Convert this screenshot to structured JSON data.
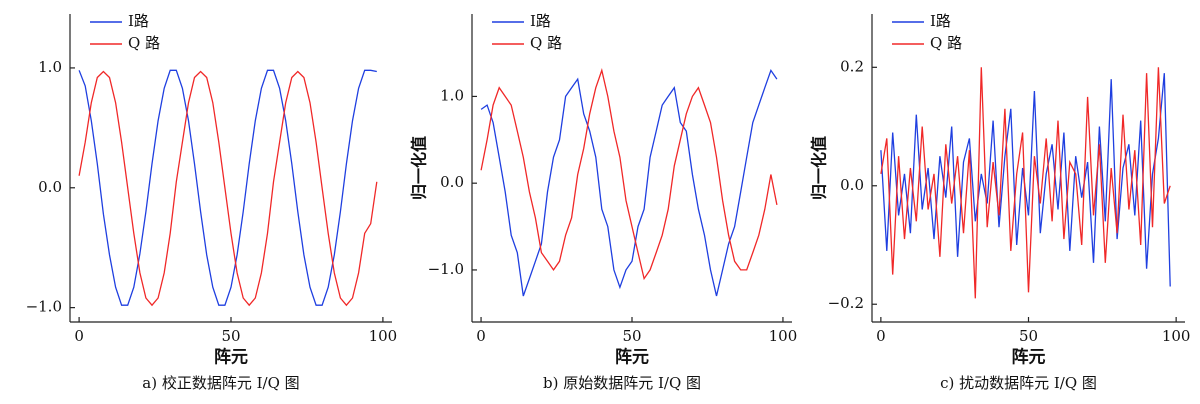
{
  "chart_data": [
    {
      "type": "line",
      "caption": "a)  校正数据阵元 I/Q 图",
      "xlabel": "阵元",
      "x": [
        0,
        2,
        4,
        6,
        8,
        10,
        12,
        14,
        16,
        18,
        20,
        22,
        24,
        26,
        28,
        30,
        32,
        34,
        36,
        38,
        40,
        42,
        44,
        46,
        48,
        50,
        52,
        54,
        56,
        58,
        60,
        62,
        64,
        66,
        68,
        70,
        72,
        74,
        76,
        78,
        80,
        82,
        84,
        86,
        88,
        90,
        92,
        94,
        96,
        98
      ],
      "series": [
        {
          "name": "I路",
          "color": "#1f3fe0",
          "values": [
            0.98,
            0.85,
            0.56,
            0.2,
            -0.22,
            -0.56,
            -0.83,
            -0.98,
            -0.98,
            -0.83,
            -0.55,
            -0.2,
            0.2,
            0.56,
            0.83,
            0.98,
            0.98,
            0.83,
            0.56,
            0.2,
            -0.2,
            -0.56,
            -0.83,
            -0.98,
            -0.98,
            -0.83,
            -0.56,
            -0.2,
            0.2,
            0.56,
            0.83,
            0.98,
            0.98,
            0.83,
            0.56,
            0.2,
            -0.2,
            -0.56,
            -0.83,
            -0.98,
            -0.98,
            -0.83,
            -0.56,
            -0.2,
            0.2,
            0.56,
            0.83,
            0.98,
            0.98,
            0.97
          ]
        },
        {
          "name": "Q 路",
          "color": "#f02828",
          "values": [
            0.1,
            0.38,
            0.71,
            0.92,
            0.97,
            0.92,
            0.71,
            0.38,
            0,
            -0.38,
            -0.71,
            -0.92,
            -0.98,
            -0.92,
            -0.71,
            -0.38,
            0.05,
            0.38,
            0.71,
            0.92,
            0.97,
            0.92,
            0.71,
            0.38,
            0,
            -0.38,
            -0.71,
            -0.92,
            -0.98,
            -0.92,
            -0.71,
            -0.38,
            0.05,
            0.38,
            0.71,
            0.92,
            0.97,
            0.92,
            0.71,
            0.38,
            0,
            -0.38,
            -0.71,
            -0.92,
            -0.98,
            -0.92,
            -0.71,
            -0.38,
            -0.3,
            0.05
          ]
        }
      ],
      "xlim": [
        -3,
        103
      ],
      "xticks": [
        0,
        50,
        100
      ],
      "ylim": [
        -1.12,
        1.45
      ],
      "yticks": [
        {
          "value": -1,
          "label": "−1.0"
        },
        {
          "value": 0,
          "label": "0.0"
        },
        {
          "value": 1,
          "label": "1.0"
        }
      ],
      "legend": "upper-left"
    },
    {
      "type": "line",
      "caption": "b)  原始数据阵元 I/Q 图",
      "xlabel": "阵元",
      "ylabel": "归一化值",
      "x": [
        0,
        2,
        4,
        6,
        8,
        10,
        12,
        14,
        16,
        18,
        20,
        22,
        24,
        26,
        28,
        30,
        32,
        34,
        36,
        38,
        40,
        42,
        44,
        46,
        48,
        50,
        52,
        54,
        56,
        58,
        60,
        62,
        64,
        66,
        68,
        70,
        72,
        74,
        76,
        78,
        80,
        82,
        84,
        86,
        88,
        90,
        92,
        94,
        96,
        98
      ],
      "series": [
        {
          "name": "I路",
          "color": "#1f3fe0",
          "values": [
            0.85,
            0.9,
            0.7,
            0.3,
            -0.1,
            -0.6,
            -0.8,
            -1.3,
            -1.1,
            -0.9,
            -0.7,
            -0.1,
            0.3,
            0.5,
            1.0,
            1.1,
            1.2,
            0.8,
            0.6,
            0.3,
            -0.3,
            -0.5,
            -1.0,
            -1.2,
            -1.0,
            -0.9,
            -0.5,
            -0.3,
            0.3,
            0.6,
            0.9,
            1.0,
            1.1,
            0.7,
            0.6,
            0.1,
            -0.3,
            -0.6,
            -1.0,
            -1.3,
            -1.0,
            -0.7,
            -0.5,
            -0.1,
            0.3,
            0.7,
            0.9,
            1.1,
            1.3,
            1.2
          ]
        },
        {
          "name": "Q 路",
          "color": "#f02828",
          "values": [
            0.15,
            0.5,
            0.9,
            1.1,
            1.0,
            0.9,
            0.6,
            0.3,
            -0.1,
            -0.4,
            -0.8,
            -0.9,
            -1.0,
            -0.9,
            -0.6,
            -0.4,
            0.1,
            0.4,
            0.8,
            1.1,
            1.3,
            1.0,
            0.6,
            0.3,
            -0.2,
            -0.5,
            -0.8,
            -1.1,
            -1.0,
            -0.8,
            -0.6,
            -0.3,
            0.2,
            0.5,
            0.8,
            1.0,
            1.1,
            0.9,
            0.7,
            0.3,
            -0.2,
            -0.6,
            -0.9,
            -1.0,
            -1.0,
            -0.8,
            -0.6,
            -0.3,
            0.1,
            -0.25
          ]
        }
      ],
      "xlim": [
        -3,
        103
      ],
      "xticks": [
        0,
        50,
        100
      ],
      "ylim": [
        -1.6,
        1.95
      ],
      "yticks": [
        {
          "value": -1,
          "label": "−1.0"
        },
        {
          "value": 0,
          "label": "0.0"
        },
        {
          "value": 1,
          "label": "1.0"
        }
      ],
      "legend": "upper-left"
    },
    {
      "type": "line",
      "caption": "c)  扰动数据阵元 I/Q 图",
      "xlabel": "阵元",
      "ylabel": "归一化值",
      "x": [
        0,
        2,
        4,
        6,
        8,
        10,
        12,
        14,
        16,
        18,
        20,
        22,
        24,
        26,
        28,
        30,
        32,
        34,
        36,
        38,
        40,
        42,
        44,
        46,
        48,
        50,
        52,
        54,
        56,
        58,
        60,
        62,
        64,
        66,
        68,
        70,
        72,
        74,
        76,
        78,
        80,
        82,
        84,
        86,
        88,
        90,
        92,
        94,
        96,
        98
      ],
      "series": [
        {
          "name": "I路",
          "color": "#1f3fe0",
          "values": [
            0.06,
            -0.11,
            0.09,
            -0.05,
            0.02,
            -0.08,
            0.12,
            -0.04,
            0.03,
            -0.09,
            0.05,
            -0.02,
            0.1,
            -0.12,
            0.04,
            0.08,
            -0.06,
            0.02,
            -0.03,
            0.11,
            -0.07,
            0.05,
            0.13,
            -0.1,
            0.03,
            -0.05,
            0.16,
            -0.08,
            0.02,
            0.07,
            -0.04,
            0.09,
            -0.11,
            0.05,
            -0.02,
            0.04,
            -0.13,
            0.1,
            -0.06,
            0.18,
            -0.09,
            0.03,
            0.07,
            -0.05,
            0.11,
            -0.14,
            0.02,
            0.08,
            0.19,
            -0.17
          ]
        },
        {
          "name": "Q 路",
          "color": "#f02828",
          "values": [
            0.02,
            0.08,
            -0.15,
            0.05,
            -0.09,
            0.03,
            -0.06,
            0.1,
            -0.04,
            0.02,
            -0.12,
            0.07,
            -0.03,
            0.05,
            -0.08,
            0.06,
            -0.19,
            0.2,
            -0.07,
            0.04,
            -0.05,
            0.13,
            -0.11,
            0.02,
            0.09,
            -0.18,
            0.05,
            -0.03,
            0.08,
            -0.06,
            0.11,
            -0.09,
            0.04,
            0.02,
            -0.1,
            0.15,
            -0.05,
            0.07,
            -0.13,
            0.03,
            -0.08,
            0.12,
            -0.04,
            0.06,
            -0.1,
            0.19,
            -0.07,
            0.2,
            -0.03,
            0.0
          ]
        }
      ],
      "xlim": [
        -3,
        103
      ],
      "xticks": [
        0,
        50,
        100
      ],
      "ylim": [
        -0.23,
        0.29
      ],
      "yticks": [
        {
          "value": -0.2,
          "label": "−0.2"
        },
        {
          "value": 0,
          "label": "0.0"
        },
        0.2
      ],
      "legend": "upper-left"
    }
  ]
}
